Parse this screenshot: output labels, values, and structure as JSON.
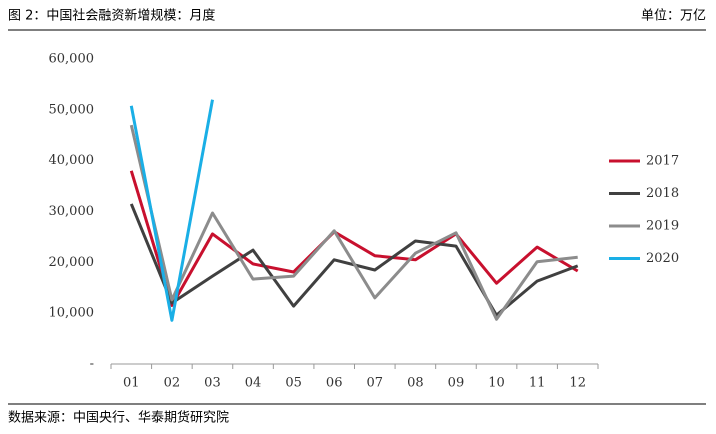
{
  "chart_data": {
    "type": "line",
    "title": "图 2：中国社会融资新增规模：月度",
    "unit": "单位：万亿",
    "source": "数据来源：中国央行、华泰期货研究院",
    "categories": [
      "01",
      "02",
      "03",
      "04",
      "05",
      "06",
      "07",
      "08",
      "09",
      "10",
      "11",
      "12"
    ],
    "series": [
      {
        "name": "2017",
        "color": "#c8102e",
        "values": [
          38000,
          11500,
          25600,
          19700,
          18100,
          26000,
          21300,
          20500,
          25600,
          15900,
          23000,
          18300
        ]
      },
      {
        "name": "2018",
        "color": "#404040",
        "values": [
          31500,
          12000,
          17300,
          22400,
          11400,
          20500,
          18500,
          24200,
          23200,
          9600,
          16300,
          19300
        ]
      },
      {
        "name": "2019",
        "color": "#8c8c8c",
        "values": [
          47000,
          12600,
          29700,
          16700,
          17300,
          26200,
          13000,
          21800,
          25800,
          8800,
          20100,
          21000
        ]
      },
      {
        "name": "2020",
        "color": "#1aafe6",
        "values": [
          50800,
          8600,
          52000,
          null,
          null,
          null,
          null,
          null,
          null,
          null,
          null,
          null
        ]
      }
    ],
    "ylim": [
      0,
      60000
    ],
    "yticks": [
      {
        "value": 0,
        "label": "-"
      },
      {
        "value": 10000,
        "label": "10,000"
      },
      {
        "value": 20000,
        "label": "20,000"
      },
      {
        "value": 30000,
        "label": "30,000"
      },
      {
        "value": 40000,
        "label": "40,000"
      },
      {
        "value": 50000,
        "label": "50,000"
      },
      {
        "value": 60000,
        "label": "60,000"
      }
    ],
    "grid": false,
    "legend": "right"
  }
}
